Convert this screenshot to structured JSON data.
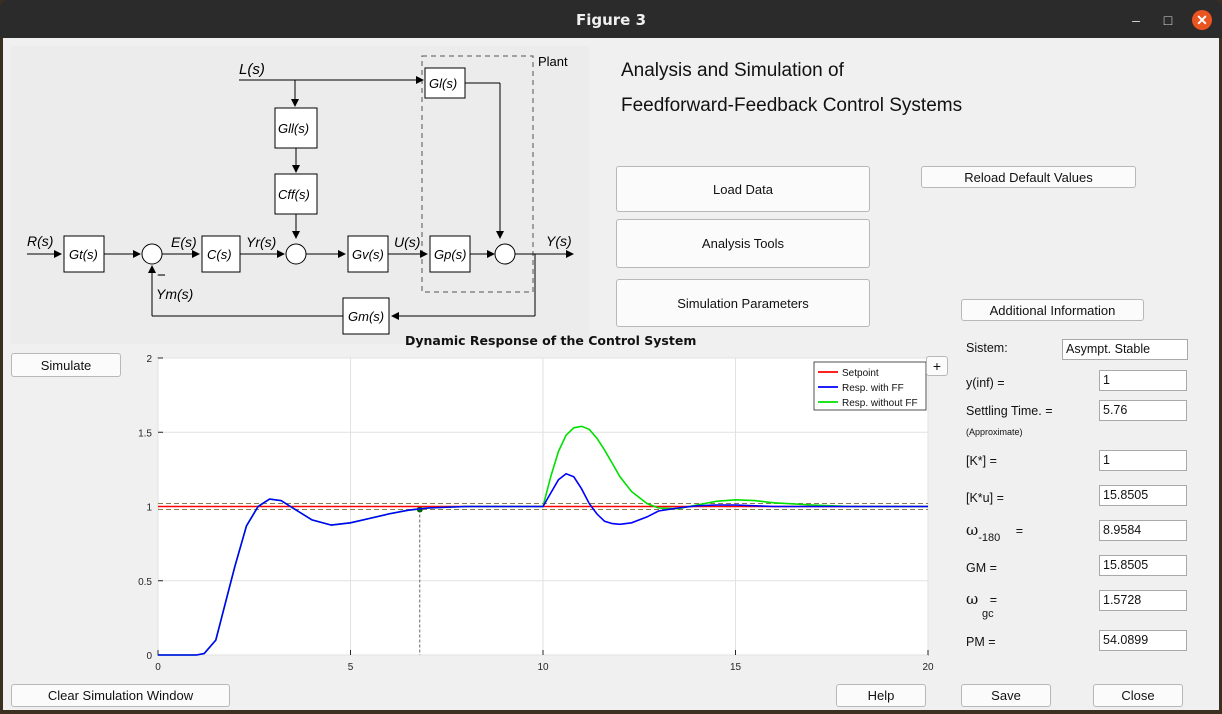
{
  "window": {
    "title": "Figure 3"
  },
  "header": {
    "line1": "Analysis and Simulation of",
    "line2": "Feedforward-Feedback Control Systems"
  },
  "buttons": {
    "load_data": "Load Data",
    "reload_defaults": "Reload Default Values",
    "analysis_tools": "Analysis Tools",
    "simulation_parameters": "Simulation Parameters",
    "additional_info": "Additional Information",
    "simulate": "Simulate",
    "plus": "+",
    "clear": "Clear Simulation Window",
    "help": "Help",
    "save": "Save",
    "close": "Close"
  },
  "diagram": {
    "plant_label": "Plant",
    "L": "L(s)",
    "R": "R(s)",
    "E": "E(s)",
    "Yr": "Yr(s)",
    "U": "U(s)",
    "Y": "Y(s)",
    "Ym": "Ym(s)",
    "Gl": "Gl(s)",
    "Gll": "Gll(s)",
    "Cff": "Cff(s)",
    "Gt": "Gt(s)",
    "C": "C(s)",
    "Gv": "Gv(s)",
    "Gp": "Gp(s)",
    "Gm": "Gm(s)",
    "minus": "−"
  },
  "results": {
    "sistem_label": "Sistem:",
    "sistem_value": "Asympt. Stable",
    "yinf_label": "y(inf) =",
    "yinf_value": "1",
    "settling_label": "Settling Time. =",
    "settling_value": "5.76",
    "approx_note": "(Approximate)",
    "k_label": "[K*] =",
    "k_value": "1",
    "ku_label": "[K*u] =",
    "ku_value": "15.8505",
    "w180_symbol": "ω",
    "w180_sub": "-180",
    "w180_eq": "=",
    "w180_value": "8.9584",
    "gm_label": "GM =",
    "gm_value": "15.8505",
    "wgc_symbol": "ω",
    "wgc_sub": "gc",
    "wgc_eq": "=",
    "wgc_value": "1.5728",
    "pm_label": "PM =",
    "pm_value": "54.0899"
  },
  "chart_data": {
    "type": "line",
    "title": "Dynamic Response of the Control System",
    "xlim": [
      0,
      20
    ],
    "ylim": [
      0,
      2
    ],
    "xticks": [
      0,
      5,
      10,
      15,
      20
    ],
    "yticks": [
      0,
      0.5,
      1,
      1.5,
      2
    ],
    "grid": true,
    "legend_position": "top-right",
    "series": [
      {
        "name": "Setpoint",
        "color": "#ff0000",
        "x": [
          0,
          20
        ],
        "y": [
          1,
          1
        ]
      },
      {
        "name": "Resp. with FF",
        "color": "#0000ff",
        "x": [
          0,
          1,
          1.2,
          1.5,
          1.8,
          2.0,
          2.3,
          2.6,
          2.9,
          3.2,
          3.5,
          4.0,
          4.5,
          5.0,
          5.5,
          6.0,
          6.5,
          7.0,
          8.0,
          9.0,
          10.0,
          10.2,
          10.4,
          10.6,
          10.8,
          11.0,
          11.2,
          11.4,
          11.6,
          11.8,
          12.0,
          12.3,
          12.7,
          13.0,
          13.5,
          14.0,
          14.5,
          15.0,
          15.5,
          16.0,
          17.0,
          18.0,
          20.0
        ],
        "y": [
          0,
          0,
          0.01,
          0.1,
          0.4,
          0.6,
          0.87,
          1.0,
          1.05,
          1.04,
          0.99,
          0.91,
          0.875,
          0.89,
          0.92,
          0.95,
          0.975,
          0.99,
          1.0,
          1.0,
          1.0,
          1.09,
          1.18,
          1.22,
          1.2,
          1.12,
          1.02,
          0.95,
          0.9,
          0.885,
          0.88,
          0.89,
          0.93,
          0.97,
          0.99,
          1.005,
          1.01,
          1.01,
          1.005,
          1.0,
          1.0,
          1.0,
          1.0
        ]
      },
      {
        "name": "Resp. without FF",
        "color": "#00e000",
        "x": [
          0,
          1,
          1.2,
          1.5,
          1.8,
          2.0,
          2.3,
          2.6,
          2.9,
          3.2,
          3.5,
          4.0,
          4.5,
          5.0,
          5.5,
          6.0,
          6.5,
          7.0,
          8.0,
          9.0,
          10.0,
          10.2,
          10.4,
          10.6,
          10.8,
          11.0,
          11.2,
          11.4,
          11.6,
          11.8,
          12.0,
          12.3,
          12.7,
          13.0,
          13.5,
          14.0,
          14.5,
          15.0,
          15.5,
          16.0,
          17.0,
          18.0,
          20.0
        ],
        "y": [
          0,
          0,
          0.01,
          0.1,
          0.4,
          0.6,
          0.87,
          1.0,
          1.05,
          1.04,
          0.99,
          0.91,
          0.875,
          0.89,
          0.92,
          0.95,
          0.975,
          0.99,
          1.0,
          1.0,
          1.0,
          1.2,
          1.37,
          1.48,
          1.53,
          1.54,
          1.52,
          1.46,
          1.38,
          1.29,
          1.2,
          1.1,
          1.02,
          0.99,
          0.985,
          1.01,
          1.035,
          1.045,
          1.04,
          1.025,
          1.01,
          1.0,
          1.0
        ]
      }
    ],
    "reference_lines": [
      {
        "kind": "upper band",
        "y": 1.02
      },
      {
        "kind": "lower band",
        "y": 0.98
      },
      {
        "kind": "settling marker",
        "x": 6.8,
        "y": 0.98
      }
    ]
  }
}
